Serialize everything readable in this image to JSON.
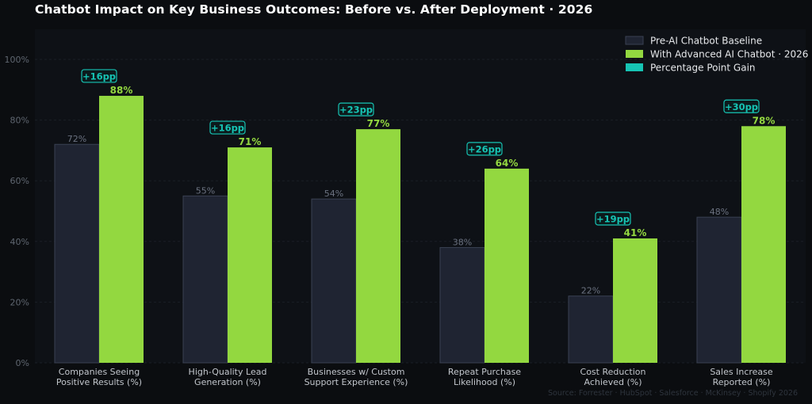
{
  "title": "Chatbot Impact on Key Business Outcomes: Before vs. After Deployment · 2026",
  "source": "Source: Forrester · HubSpot · Salesforce · McKinsey · Shopify 2026",
  "colors": {
    "background": "#0b0d10",
    "plot_bg": "#0e1116",
    "baseline": "#1f2432",
    "baseline_edge": "#3a4152",
    "advanced": "#93d840",
    "gain": "#16c4b4",
    "baseline_label": "#6b7280",
    "axis_text": "#5f6670",
    "cat_text": "#c2c6cc"
  },
  "chart_data": {
    "type": "bar",
    "title": "Chatbot Impact on Key Business Outcomes: Before vs. After Deployment · 2026",
    "categories": [
      [
        "Companies Seeing",
        "Positive Results (%)"
      ],
      [
        "High-Quality Lead",
        "Generation (%)"
      ],
      [
        "Businesses w/ Custom",
        "Support Experience (%)"
      ],
      [
        "Repeat Purchase",
        "Likelihood (%)"
      ],
      [
        "Cost Reduction",
        "Achieved (%)"
      ],
      [
        "Sales Increase",
        "Reported (%)"
      ]
    ],
    "series": [
      {
        "name": "Pre-AI Chatbot Baseline",
        "values": [
          72,
          55,
          54,
          38,
          22,
          48
        ]
      },
      {
        "name": "With Advanced AI Chatbot · 2026",
        "values": [
          88,
          71,
          77,
          64,
          41,
          78
        ]
      }
    ],
    "gain_series_name": "Percentage Point Gain",
    "gains": [
      "+16pp",
      "+16pp",
      "+23pp",
      "+26pp",
      "+19pp",
      "+30pp"
    ],
    "y_ticks": [
      "0%",
      "20%",
      "40%",
      "60%",
      "80%",
      "100%"
    ],
    "ylim": [
      0,
      100
    ],
    "grid": true,
    "legend": "top-right"
  }
}
